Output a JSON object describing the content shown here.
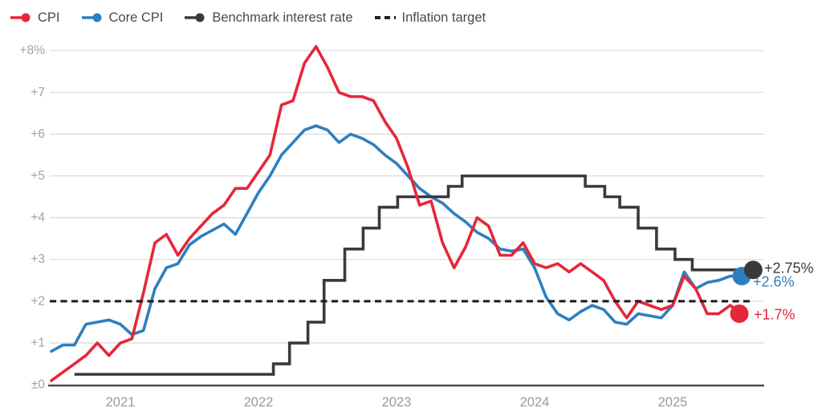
{
  "colors": {
    "cpi": "#e62639",
    "core_cpi": "#2e7fc0",
    "benchmark": "#3a3a3a",
    "target": "#212121",
    "grid": "#d9d9d9",
    "axis_line": "#4a4a4a",
    "tick_label": "#9e9e9e"
  },
  "legend": {
    "items": [
      {
        "label": "CPI",
        "color": "#e62639",
        "marker": "line-dot"
      },
      {
        "label": "Core CPI",
        "color": "#2e7fc0",
        "marker": "line-dot"
      },
      {
        "label": "Benchmark interest rate",
        "color": "#3a3a3a",
        "marker": "line-dot"
      },
      {
        "label": "Inflation target",
        "color": "#212121",
        "marker": "dashed"
      }
    ]
  },
  "axes": {
    "y_ticks": [
      {
        "label": "+8%",
        "value": 8
      },
      {
        "label": "+7",
        "value": 7
      },
      {
        "label": "+6",
        "value": 6
      },
      {
        "label": "+5",
        "value": 5
      },
      {
        "label": "+4",
        "value": 4
      },
      {
        "label": "+3",
        "value": 3
      },
      {
        "label": "+2",
        "value": 2
      },
      {
        "label": "+1",
        "value": 1
      },
      {
        "label": "±0",
        "value": 0
      }
    ],
    "x_ticks": [
      {
        "label": "2021",
        "month_index": 6
      },
      {
        "label": "2022",
        "month_index": 18
      },
      {
        "label": "2023",
        "month_index": 30
      },
      {
        "label": "2024",
        "month_index": 42
      },
      {
        "label": "2025",
        "month_index": 54
      }
    ]
  },
  "end_labels": [
    {
      "series": "benchmark",
      "text": "+2.75%",
      "value": 2.75,
      "color": "#3a3a3a"
    },
    {
      "series": "core-cpi",
      "text": "+2.6%",
      "value": 2.6,
      "color": "#2e7fc0"
    },
    {
      "series": "cpi",
      "text": "+1.7%",
      "value": 1.7,
      "color": "#e62639"
    }
  ],
  "chart_data": {
    "type": "line",
    "title": "",
    "x_axis": "monthly, mid-2020 through mid-2025 (month_index 0 = first plotted month)",
    "ylim": [
      0,
      8
    ],
    "grid": "horizontal",
    "legend_position": "top-left",
    "inflation_target": {
      "value": 2,
      "style": "dashed"
    },
    "series": [
      {
        "name": "CPI",
        "color": "#e62639",
        "style": "solid",
        "end_value_label": "+1.7%",
        "values": [
          0.1,
          0.3,
          0.5,
          0.7,
          1.0,
          0.7,
          1.0,
          1.1,
          2.2,
          3.4,
          3.6,
          3.1,
          3.5,
          3.8,
          4.1,
          4.3,
          4.7,
          4.7,
          5.1,
          5.5,
          6.7,
          6.8,
          7.7,
          8.1,
          7.6,
          7.0,
          6.9,
          6.9,
          6.8,
          6.3,
          5.9,
          5.2,
          4.3,
          4.4,
          3.4,
          2.8,
          3.3,
          4.0,
          3.8,
          3.1,
          3.1,
          3.4,
          2.9,
          2.8,
          2.9,
          2.7,
          2.9,
          2.7,
          2.5,
          2.0,
          1.6,
          2.0,
          1.9,
          1.8,
          1.9,
          2.6,
          2.3,
          1.7,
          1.7,
          1.9,
          1.7
        ]
      },
      {
        "name": "Core CPI",
        "color": "#2e7fc0",
        "style": "solid",
        "end_value_label": "+2.6%",
        "values": [
          0.8,
          0.95,
          0.95,
          1.45,
          1.5,
          1.55,
          1.45,
          1.2,
          1.3,
          2.3,
          2.8,
          2.9,
          3.35,
          3.55,
          3.7,
          3.85,
          3.6,
          4.1,
          4.6,
          5.0,
          5.5,
          5.8,
          6.1,
          6.2,
          6.1,
          5.8,
          6.0,
          5.9,
          5.75,
          5.5,
          5.3,
          5.0,
          4.7,
          4.5,
          4.35,
          4.1,
          3.9,
          3.65,
          3.5,
          3.25,
          3.2,
          3.25,
          2.8,
          2.1,
          1.7,
          1.55,
          1.75,
          1.9,
          1.8,
          1.5,
          1.45,
          1.7,
          1.65,
          1.6,
          1.9,
          2.7,
          2.3,
          2.45,
          2.5,
          2.6,
          2.6
        ]
      },
      {
        "name": "Benchmark interest rate",
        "color": "#3a3a3a",
        "style": "step",
        "end_value_label": "+2.75%",
        "rate_changes": [
          [
            2,
            0.25
          ],
          [
            19.3,
            0.5
          ],
          [
            20.7,
            1.0
          ],
          [
            22.3,
            1.5
          ],
          [
            23.7,
            2.5
          ],
          [
            25.5,
            3.25
          ],
          [
            27.1,
            3.75
          ],
          [
            28.5,
            4.25
          ],
          [
            30.1,
            4.5
          ],
          [
            34.5,
            4.75
          ],
          [
            35.7,
            5.0
          ],
          [
            46.4,
            4.75
          ],
          [
            48.1,
            4.5
          ],
          [
            49.4,
            4.25
          ],
          [
            51.0,
            3.75
          ],
          [
            52.6,
            3.25
          ],
          [
            54.2,
            3.0
          ],
          [
            55.7,
            2.75
          ],
          [
            61,
            2.75
          ]
        ]
      },
      {
        "name": "Inflation target",
        "color": "#212121",
        "style": "dashed-horizontal",
        "value": 2
      }
    ]
  }
}
